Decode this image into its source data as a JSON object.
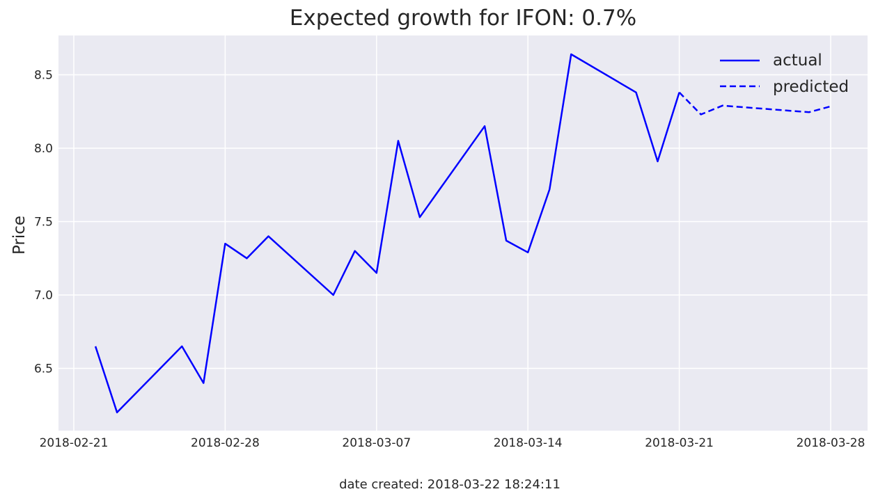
{
  "chart_data": {
    "type": "line",
    "title": "Expected growth for IFON: 0.7%",
    "xlabel": "",
    "ylabel": "Price",
    "xlim": [
      "2018-02-20",
      "2018-03-28"
    ],
    "ylim": [
      6.08,
      8.76
    ],
    "x_ticks": [
      "2018-02-21",
      "2018-02-28",
      "2018-03-07",
      "2018-03-14",
      "2018-03-21",
      "2018-03-28"
    ],
    "y_ticks": [
      6.5,
      7.0,
      7.5,
      8.0,
      8.5
    ],
    "y_tick_labels": [
      "6.5",
      "7.0",
      "7.5",
      "8.0",
      "8.5"
    ],
    "grid": true,
    "legend_position": "top-right",
    "series": [
      {
        "name": "actual",
        "style": "solid",
        "color": "#0000ff",
        "points": [
          {
            "x": "2018-02-22",
            "y": 6.65
          },
          {
            "x": "2018-02-23",
            "y": 6.2
          },
          {
            "x": "2018-02-26",
            "y": 6.65
          },
          {
            "x": "2018-02-27",
            "y": 6.4
          },
          {
            "x": "2018-02-28",
            "y": 7.35
          },
          {
            "x": "2018-03-01",
            "y": 7.25
          },
          {
            "x": "2018-03-02",
            "y": 7.4
          },
          {
            "x": "2018-03-05",
            "y": 7.0
          },
          {
            "x": "2018-03-06",
            "y": 7.3
          },
          {
            "x": "2018-03-07",
            "y": 7.15
          },
          {
            "x": "2018-03-08",
            "y": 8.05
          },
          {
            "x": "2018-03-09",
            "y": 7.53
          },
          {
            "x": "2018-03-12",
            "y": 8.15
          },
          {
            "x": "2018-03-13",
            "y": 7.37
          },
          {
            "x": "2018-03-14",
            "y": 7.29
          },
          {
            "x": "2018-03-15",
            "y": 7.72
          },
          {
            "x": "2018-03-16",
            "y": 8.64
          },
          {
            "x": "2018-03-19",
            "y": 8.38
          },
          {
            "x": "2018-03-20",
            "y": 7.91
          },
          {
            "x": "2018-03-21",
            "y": 8.38
          }
        ]
      },
      {
        "name": "predicted",
        "style": "dashed",
        "color": "#0000ff",
        "points": [
          {
            "x": "2018-03-21",
            "y": 8.38
          },
          {
            "x": "2018-03-22",
            "y": 8.23
          },
          {
            "x": "2018-03-23",
            "y": 8.29
          },
          {
            "x": "2018-03-27",
            "y": 8.245
          },
          {
            "x": "2018-03-28",
            "y": 8.285
          }
        ]
      }
    ]
  },
  "footer": {
    "date_created": "date created: 2018-03-22 18:24:11"
  },
  "colors": {
    "plot_background": "#eaeaf2",
    "grid": "#ffffff",
    "line": "#0000ff",
    "text": "#262626"
  }
}
